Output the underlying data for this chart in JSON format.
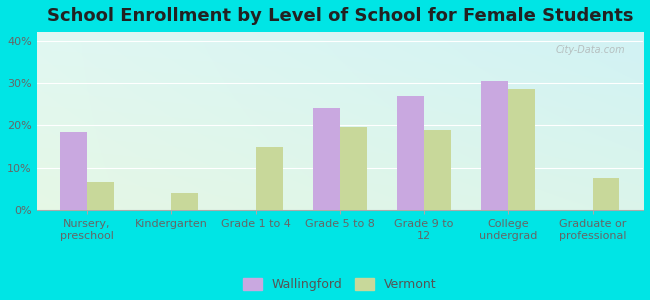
{
  "title": "School Enrollment by Level of School for Female Students",
  "categories": [
    "Nursery,\npreschool",
    "Kindergarten",
    "Grade 1 to 4",
    "Grade 5 to 8",
    "Grade 9 to\n12",
    "College\nundergrad",
    "Graduate or\nprofessional"
  ],
  "wallingford": [
    18.5,
    0,
    0,
    24,
    27,
    30.5,
    0
  ],
  "vermont": [
    6.5,
    4,
    14.8,
    19.5,
    19,
    28.5,
    7.5
  ],
  "wallingford_color": "#c9a8e0",
  "vermont_color": "#c8d89a",
  "background_color": "#00e5e5",
  "ylim": [
    0,
    42
  ],
  "yticks": [
    0,
    10,
    20,
    30,
    40
  ],
  "ytick_labels": [
    "0%",
    "10%",
    "20%",
    "30%",
    "40%"
  ],
  "title_fontsize": 13,
  "tick_fontsize": 8,
  "legend_fontsize": 9,
  "bar_width": 0.32,
  "grid_color": "#d0e8d0",
  "watermark": "City-Data.com"
}
